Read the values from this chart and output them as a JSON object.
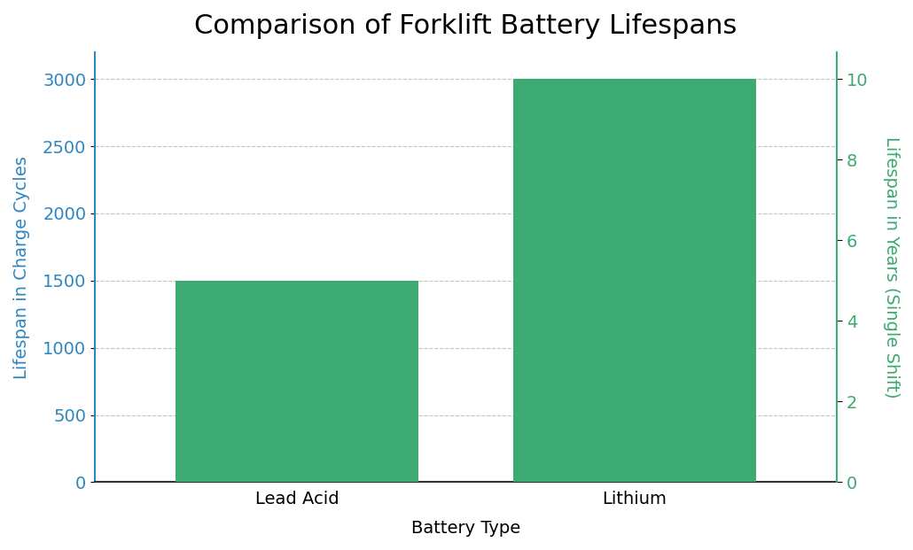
{
  "title": "Comparison of Forklift Battery Lifespans",
  "categories": [
    "Lead Acid",
    "Lithium"
  ],
  "charge_cycles": [
    1500,
    3000
  ],
  "years_single_shift": [
    5,
    10
  ],
  "bar_color": "#3daa72",
  "left_axis_label": "Lifespan in Charge Cycles",
  "left_axis_color": "#2e86c1",
  "right_axis_label": "Lifespan in Years (Single Shift)",
  "right_axis_color": "#3daa72",
  "xlabel": "Battery Type",
  "left_ylim": [
    0,
    3200
  ],
  "right_ylim": [
    0,
    10.67
  ],
  "left_yticks": [
    0,
    500,
    1000,
    1500,
    2000,
    2500,
    3000
  ],
  "right_yticks": [
    0,
    2,
    4,
    6,
    8,
    10
  ],
  "title_fontsize": 22,
  "label_fontsize": 14,
  "tick_fontsize": 14,
  "background_color": "#ffffff",
  "bar_width": 0.72,
  "grid_color": "#aaaaaa",
  "grid_linestyle": "--",
  "grid_alpha": 0.7
}
